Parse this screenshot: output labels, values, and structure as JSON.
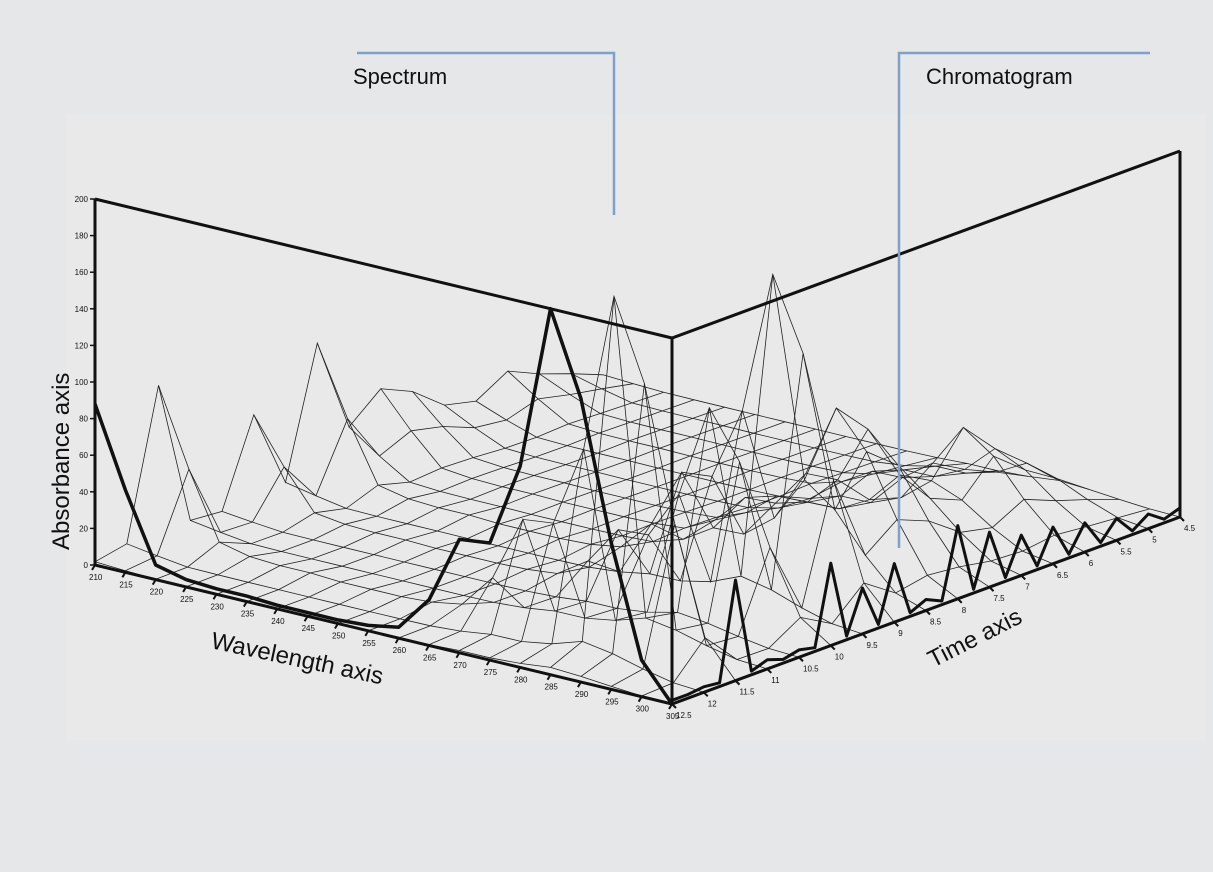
{
  "callouts": {
    "spectrum": "Spectrum",
    "chromatogram": "Chromatogram"
  },
  "colors": {
    "background": "#e6e7e9",
    "panel": "#e9e9e9",
    "callout_line": "#7f9fcc",
    "mesh": "#222222",
    "frame": "#111111"
  },
  "chart_data": {
    "type": "surface",
    "xlabel": "Wavelength axis",
    "ylabel": "Time axis",
    "zlabel": "Absorbance axis",
    "wavelength_ticks": [
      "210",
      "215",
      "220",
      "225",
      "230",
      "235",
      "240",
      "245",
      "250",
      "255",
      "260",
      "265",
      "270",
      "275",
      "280",
      "285",
      "290",
      "295",
      "300",
      "305"
    ],
    "time_ticks": [
      "4.5",
      "5",
      "5.5",
      "6",
      "6.5",
      "7",
      "7.5",
      "8",
      "8.5",
      "9",
      "9.5",
      "10",
      "10.5",
      "11",
      "11.5",
      "12",
      "12.5"
    ],
    "absorbance_ticks": [
      "0",
      "20",
      "40",
      "60",
      "80",
      "100",
      "120",
      "140",
      "160",
      "180",
      "200"
    ],
    "xlim": [
      210,
      305
    ],
    "ylim": [
      4.5,
      12.5
    ],
    "zlim": [
      0,
      200
    ],
    "spectrum": {
      "wavelength": [
        210,
        215,
        220,
        225,
        230,
        235,
        240,
        245,
        250,
        255,
        260,
        265,
        270,
        275,
        280,
        285,
        290,
        295,
        300,
        305
      ],
      "absorbance": [
        88,
        45,
        8,
        4,
        3,
        3,
        2,
        2,
        2,
        3,
        6,
        25,
        62,
        64,
        110,
        200,
        155,
        80,
        20,
        0
      ]
    },
    "chromatogram": {
      "time": [
        12.5,
        12.0,
        11.5,
        11.0,
        10.5,
        10.0,
        9.5,
        9.0,
        8.5,
        8.0,
        7.5,
        7.0,
        6.5,
        6.0,
        5.5,
        5.0,
        4.5
      ],
      "absorbance": [
        2,
        3,
        55,
        5,
        4,
        45,
        25,
        32,
        6,
        40,
        30,
        22,
        20,
        16,
        12,
        8,
        5
      ]
    }
  }
}
